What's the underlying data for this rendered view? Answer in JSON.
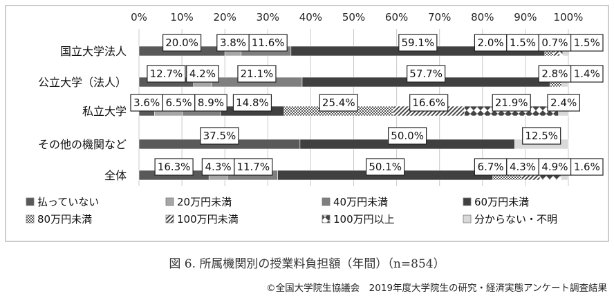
{
  "chart_data": {
    "type": "bar",
    "orientation": "horizontal",
    "stacked": "percent",
    "x_ticks": [
      "0%",
      "10%",
      "20%",
      "30%",
      "40%",
      "50%",
      "60%",
      "70%",
      "80%",
      "90%",
      "100%"
    ],
    "xlim": [
      0,
      100
    ],
    "grid": true,
    "legend_position": "bottom",
    "categories": [
      "国立大学法人",
      "公立大学（法人）",
      "私立大学",
      "その他の機関など",
      "全体"
    ],
    "series": [
      {
        "name": "払っていない",
        "color": "#595959",
        "pattern": "solid-dark",
        "values": [
          20.0,
          12.7,
          3.6,
          37.5,
          16.3
        ]
      },
      {
        "name": "20万円未満",
        "color": "#a6a6a6",
        "pattern": "solid-light",
        "values": [
          3.8,
          4.2,
          6.5,
          0,
          4.3
        ]
      },
      {
        "name": "40万円未満",
        "color": "#7f7f7f",
        "pattern": "solid-mid",
        "values": [
          11.6,
          21.1,
          8.9,
          0,
          11.7
        ]
      },
      {
        "name": "60万円未満",
        "color": "#404040",
        "pattern": "solid-darker",
        "values": [
          59.1,
          57.7,
          14.8,
          50.0,
          50.1
        ]
      },
      {
        "name": "80万円未満",
        "color": "#bfbfbf",
        "pattern": "crosshatch",
        "values": [
          2.0,
          2.8,
          25.4,
          0,
          6.7
        ]
      },
      {
        "name": "100万円未満",
        "color": "#ffffff",
        "pattern": "diagonal",
        "values": [
          1.5,
          0,
          16.6,
          0,
          4.3
        ]
      },
      {
        "name": "100万円以上",
        "color": "#ffffff",
        "pattern": "checker",
        "values": [
          0.7,
          0,
          21.9,
          0,
          4.9
        ]
      },
      {
        "name": "分からない・不明",
        "color": "#d9d9d9",
        "pattern": "solid-pale",
        "values": [
          1.5,
          1.4,
          2.4,
          12.5,
          1.6
        ]
      }
    ],
    "data_labels": [
      [
        "20.0%",
        "3.8%",
        "11.6%",
        "59.1%",
        "2.0%",
        "1.5%",
        "0.7%",
        "1.5%"
      ],
      [
        "12.7%",
        "4.2%",
        "21.1%",
        "57.7%",
        "2.8%",
        "",
        "",
        "1.4%"
      ],
      [
        "3.6%",
        "6.5%",
        "8.9%",
        "14.8%",
        "25.4%",
        "16.6%",
        "21.9%",
        "2.4%"
      ],
      [
        "37.5%",
        "",
        "",
        "50.0%",
        "",
        "",
        "",
        "12.5%"
      ],
      [
        "16.3%",
        "4.3%",
        "11.7%",
        "50.1%",
        "6.7%",
        "4.3%",
        "4.9%",
        "1.6%"
      ]
    ],
    "title": "図 6. 所属機関別の授業料負担額（年間）（n=854）"
  },
  "caption": "図 6. 所属機関別の授業料負担額（年間）（n=854）",
  "copyright": "©全国大学院生協議会　2019年度大学院生の研究・経済実態アンケート調査結果"
}
